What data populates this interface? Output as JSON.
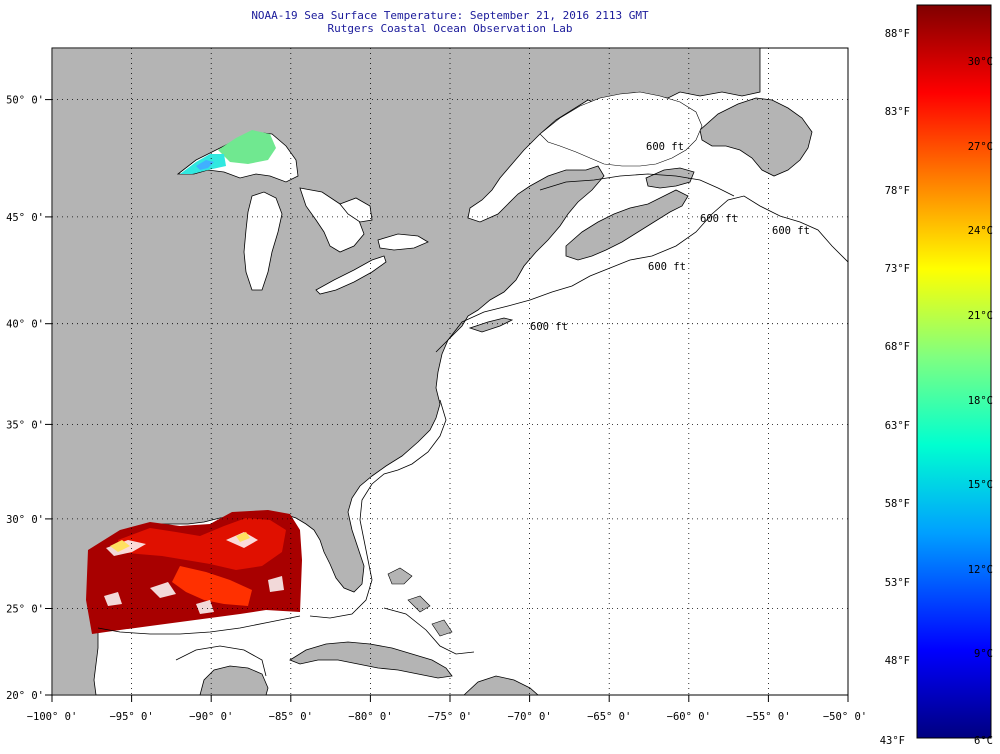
{
  "header": {
    "title": "NOAA-19 Sea Surface Temperature:  September 21, 2016 2113 GMT",
    "subtitle": "Rutgers Coastal Ocean Observation Lab"
  },
  "map": {
    "lon_range": [
      -100,
      -50
    ],
    "lat_range": [
      20,
      52.5
    ],
    "grid": "dotted",
    "land_color": "#b4b4b4",
    "cloud_mask_color": "#ffffff",
    "x_tick_labels": [
      "−100° 0'",
      "−95° 0'",
      "−90° 0'",
      "−85° 0'",
      "−80° 0'",
      "−75° 0'",
      "−70° 0'",
      "−65° 0'",
      "−60° 0'",
      "−55° 0'",
      "−50° 0'"
    ],
    "y_tick_labels": [
      "50° 0'",
      "45° 0'",
      "40° 0'",
      "35° 0'",
      "30° 0'",
      "25° 0'",
      "20° 0'"
    ],
    "depth_contour_labels": [
      "600 ft",
      "600 ft",
      "600 ft",
      "600 ft",
      "600 ft"
    ]
  },
  "colorbar": {
    "fahrenheit_labels": [
      "88°F",
      "83°F",
      "78°F",
      "73°F",
      "68°F",
      "63°F",
      "58°F",
      "53°F",
      "48°F",
      "43°F"
    ],
    "celsius_labels": [
      "30°C",
      "27°C",
      "24°C",
      "21°C",
      "18°C",
      "15°C",
      "12°C",
      "9°C",
      "6°C"
    ],
    "min_c": 6,
    "max_c": 31.5,
    "colors": [
      "#000080",
      "#0000ff",
      "#00a0ff",
      "#00ffd0",
      "#80ff80",
      "#ffff00",
      "#ff8000",
      "#ff0000",
      "#800000"
    ]
  }
}
